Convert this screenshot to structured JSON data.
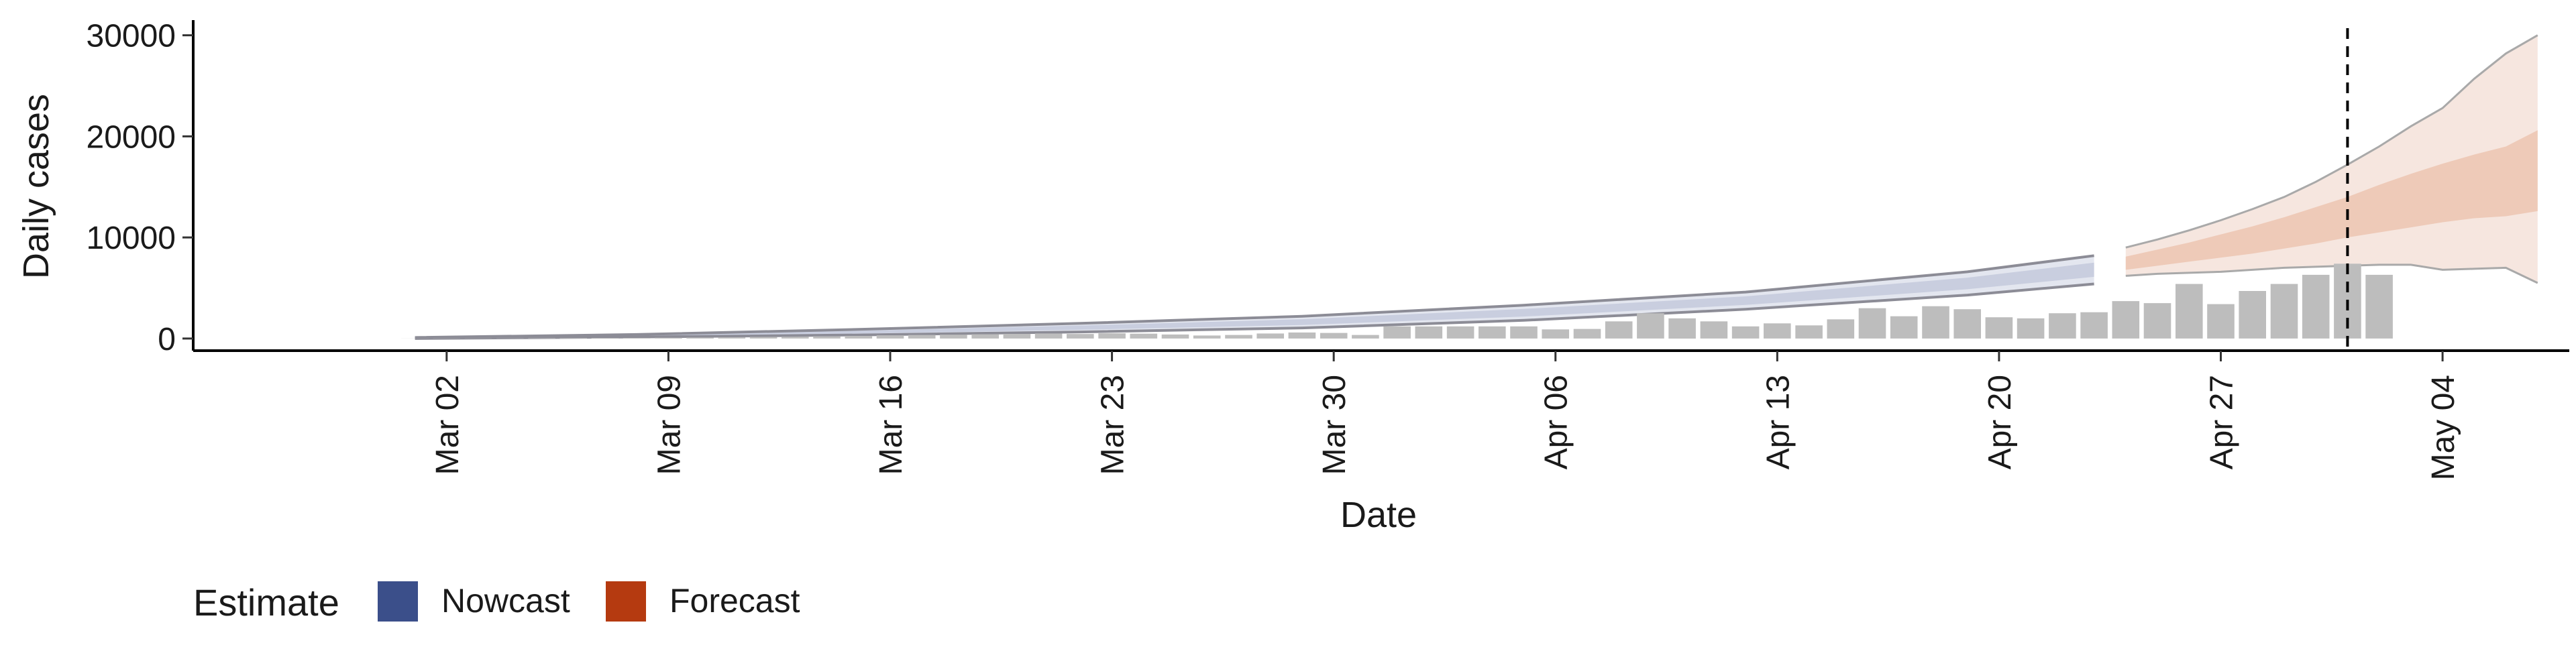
{
  "chart_data": {
    "type": "bar",
    "xlabel": "Date",
    "ylabel": "Daily cases",
    "ylim": [
      -1200,
      31500
    ],
    "yticks": [
      0,
      10000,
      20000,
      30000
    ],
    "ytick_labels": [
      "0",
      "10000",
      "20000",
      "30000"
    ],
    "x_range": [
      "2020-02-23",
      "2020-05-08"
    ],
    "x_tick_dates": [
      "2020-03-02",
      "2020-03-09",
      "2020-03-16",
      "2020-03-23",
      "2020-03-30",
      "2020-04-06",
      "2020-04-13",
      "2020-04-20",
      "2020-04-27",
      "2020-05-04"
    ],
    "x_tick_labels": [
      "Mar 02",
      "Mar 09",
      "Mar 16",
      "Mar 23",
      "Mar 30",
      "Apr 06",
      "Apr 13",
      "Apr 20",
      "Apr 27",
      "May 04"
    ],
    "reported_cases": {
      "dates": [
        "2020-03-01",
        "2020-03-02",
        "2020-03-03",
        "2020-03-04",
        "2020-03-05",
        "2020-03-06",
        "2020-03-07",
        "2020-03-08",
        "2020-03-09",
        "2020-03-10",
        "2020-03-11",
        "2020-03-12",
        "2020-03-13",
        "2020-03-14",
        "2020-03-15",
        "2020-03-16",
        "2020-03-17",
        "2020-03-18",
        "2020-03-19",
        "2020-03-20",
        "2020-03-21",
        "2020-03-22",
        "2020-03-23",
        "2020-03-24",
        "2020-03-25",
        "2020-03-26",
        "2020-03-27",
        "2020-03-28",
        "2020-03-29",
        "2020-03-30",
        "2020-03-31",
        "2020-04-01",
        "2020-04-02",
        "2020-04-03",
        "2020-04-04",
        "2020-04-05",
        "2020-04-06",
        "2020-04-07",
        "2020-04-08",
        "2020-04-09",
        "2020-04-10",
        "2020-04-11",
        "2020-04-12",
        "2020-04-13",
        "2020-04-14",
        "2020-04-15",
        "2020-04-16",
        "2020-04-17",
        "2020-04-18",
        "2020-04-19",
        "2020-04-20",
        "2020-04-21",
        "2020-04-22",
        "2020-04-23",
        "2020-04-24",
        "2020-04-25",
        "2020-04-26",
        "2020-04-27",
        "2020-04-28",
        "2020-04-29",
        "2020-04-30",
        "2020-05-01",
        "2020-05-02"
      ],
      "values": [
        5,
        10,
        15,
        20,
        30,
        40,
        50,
        60,
        80,
        100,
        120,
        150,
        180,
        220,
        260,
        320,
        350,
        380,
        420,
        460,
        500,
        450,
        520,
        480,
        400,
        300,
        350,
        500,
        600,
        550,
        350,
        1200,
        1200,
        1200,
        1200,
        1200,
        900,
        950,
        1700,
        2500,
        2000,
        1700,
        1200,
        1500,
        1300,
        1900,
        3000,
        2200,
        3200,
        2900,
        2100,
        2000,
        2500,
        2600,
        3700,
        3500,
        5400,
        3400,
        4700,
        5400,
        6300,
        7400,
        6300
      ]
    },
    "nowcast": {
      "dates": [
        "2020-03-01",
        "2020-03-08",
        "2020-03-15",
        "2020-03-22",
        "2020-03-29",
        "2020-04-05",
        "2020-04-12",
        "2020-04-19",
        "2020-04-23"
      ],
      "lower": [
        0,
        150,
        350,
        650,
        1050,
        1800,
        2900,
        4300,
        5400
      ],
      "upper": [
        100,
        400,
        900,
        1500,
        2200,
        3300,
        4600,
        6600,
        8200
      ]
    },
    "forecast": {
      "dates": [
        "2020-04-24",
        "2020-04-25",
        "2020-04-26",
        "2020-04-27",
        "2020-04-28",
        "2020-04-29",
        "2020-04-30",
        "2020-05-01",
        "2020-05-02",
        "2020-05-03",
        "2020-05-04",
        "2020-05-05",
        "2020-05-06",
        "2020-05-07"
      ],
      "outer_lower": [
        6200,
        6400,
        6500,
        6600,
        6800,
        7000,
        7100,
        7200,
        7300,
        7300,
        6800,
        6900,
        7000,
        5500
      ],
      "outer_upper": [
        9000,
        9800,
        10700,
        11700,
        12800,
        14000,
        15500,
        17200,
        19000,
        21000,
        22800,
        25700,
        28200,
        30000
      ],
      "inner_lower": [
        6800,
        7200,
        7600,
        8000,
        8400,
        8900,
        9400,
        10000,
        10500,
        11000,
        11500,
        11900,
        12100,
        12600
      ],
      "inner_upper": [
        8100,
        8800,
        9500,
        10300,
        11100,
        12000,
        13000,
        14000,
        15200,
        16300,
        17300,
        18200,
        19000,
        20600
      ]
    },
    "vline_date": "2020-05-01",
    "legend": {
      "title": "Estimate",
      "position": "bottom-left",
      "items": [
        {
          "label": "Nowcast",
          "color": "#3b4f8a"
        },
        {
          "label": "Forecast",
          "color": "#b53a10"
        }
      ]
    },
    "colors": {
      "bars": "#bdbdbd",
      "nowcast_outer": "#e3e6ef",
      "nowcast_inner": "#c9cedf",
      "forecast_outer": "#f6e6df",
      "forecast_inner": "#eecab8",
      "band_outline": "#a9a9a9",
      "vline": "#000000"
    }
  }
}
